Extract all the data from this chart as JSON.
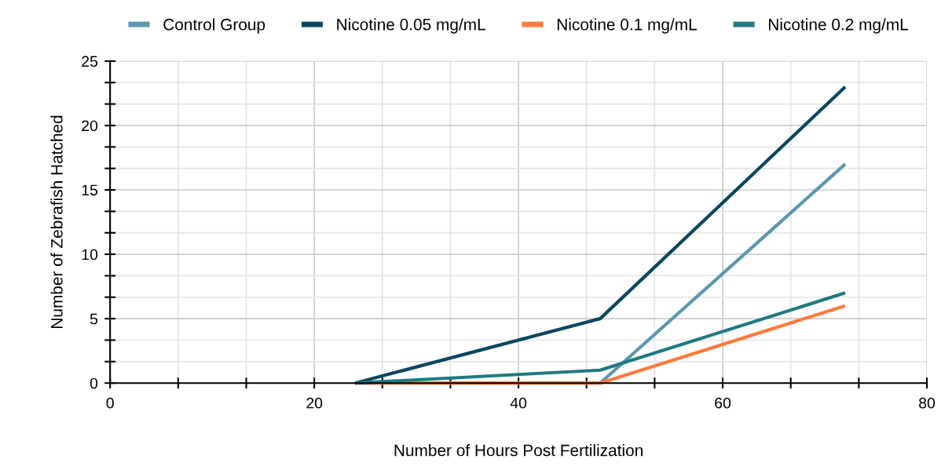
{
  "chart_data": {
    "type": "line",
    "xlabel": "Number of Hours Post Fertilization",
    "ylabel": "Number of Zebrafish Hatched",
    "x": [
      24,
      48,
      72
    ],
    "series": [
      {
        "name": "Control Group",
        "color": "#5b97b1",
        "values": [
          0,
          0,
          17
        ]
      },
      {
        "name": "Nicotine 0.05 mg/mL",
        "color": "#0b4660",
        "values": [
          0,
          5,
          23
        ]
      },
      {
        "name": "Nicotine 0.1 mg/mL",
        "color": "#ff7a3d",
        "values": [
          0,
          0,
          6
        ]
      },
      {
        "name": "Nicotine 0.2 mg/mL",
        "color": "#1f7a80",
        "values": [
          0,
          1,
          7
        ]
      }
    ],
    "xlim": [
      0,
      80
    ],
    "xticks": [
      0,
      {
        "value": 6.667,
        "label": null
      },
      {
        "value": 13.333,
        "label": null
      },
      20,
      {
        "value": 26.667,
        "label": null
      },
      {
        "value": 33.333,
        "label": null
      },
      40,
      {
        "value": 46.667,
        "label": null
      },
      {
        "value": 53.333,
        "label": null
      },
      60,
      {
        "value": 66.667,
        "label": null
      },
      {
        "value": 73.333,
        "label": null
      },
      80
    ],
    "ylim": [
      0,
      25
    ],
    "yticks": [
      0,
      {
        "value": 1.667,
        "label": null
      },
      {
        "value": 3.333,
        "label": null
      },
      5,
      {
        "value": 6.667,
        "label": null
      },
      {
        "value": 8.333,
        "label": null
      },
      10,
      {
        "value": 11.667,
        "label": null
      },
      {
        "value": 13.333,
        "label": null
      },
      15,
      {
        "value": 16.667,
        "label": null
      },
      {
        "value": 18.333,
        "label": null
      },
      20,
      {
        "value": 21.667,
        "label": null
      },
      {
        "value": 23.333,
        "label": null
      },
      25
    ],
    "grid": true,
    "legend": "top",
    "marker": "none",
    "line_style": "solid"
  }
}
